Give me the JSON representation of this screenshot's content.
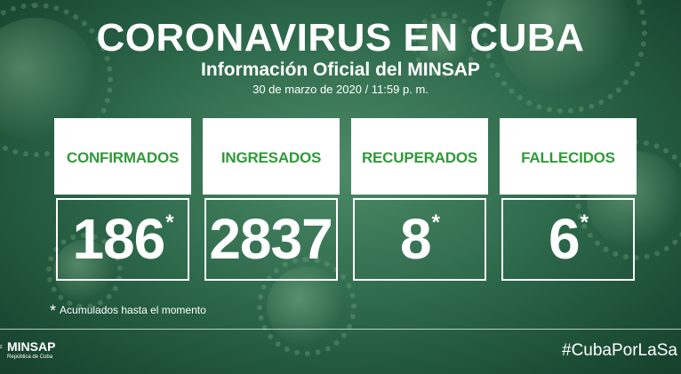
{
  "header": {
    "title": "CORONAVIRUS EN CUBA",
    "subtitle": "Información Oficial del MINSAP",
    "date": "30 de marzo de 2020 / 11:59 p. m."
  },
  "cards": [
    {
      "label": "CONFIRMADOS",
      "value": "186",
      "star": "*"
    },
    {
      "label": "INGRESADOS",
      "value": "2837",
      "star": ""
    },
    {
      "label": "RECUPERADOS",
      "value": "8",
      "star": "*"
    },
    {
      "label": "FALLECIDOS",
      "value": "6",
      "star": "*"
    }
  ],
  "footnote": {
    "star": "*",
    "text": "Acumulados hasta el momento"
  },
  "footer": {
    "logo_name": "MINSAP",
    "logo_sub": "República de Cuba",
    "hashtag": "#CubaPorLaSa"
  },
  "colors": {
    "label_green": "#2f9a36",
    "background": "#2f6b4d"
  }
}
